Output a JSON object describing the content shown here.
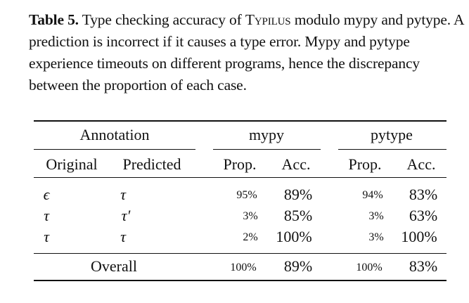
{
  "caption": {
    "label": "Table 5.",
    "text_before": " Type checking accuracy of ",
    "system_name": "Typilus",
    "text_after": " modulo mypy and pytype. A prediction is incorrect if it causes a type error. Mypy and pytype experience timeouts on different programs, hence the discrepancy between the proportion of each case."
  },
  "table": {
    "group_headers": {
      "annotation": "Annotation",
      "mypy": "mypy",
      "pytype": "pytype"
    },
    "sub_headers": {
      "original": "Original",
      "predicted": "Predicted",
      "mypy_prop": "Prop.",
      "mypy_acc": "Acc.",
      "pytype_prop": "Prop.",
      "pytype_acc": "Acc."
    },
    "rows": [
      {
        "original": "ϵ",
        "predicted": "τ",
        "mypy_prop": "95%",
        "mypy_acc": "89%",
        "pytype_prop": "94%",
        "pytype_acc": "83%"
      },
      {
        "original": "τ",
        "predicted": "τ′",
        "mypy_prop": "3%",
        "mypy_acc": "85%",
        "pytype_prop": "3%",
        "pytype_acc": "63%"
      },
      {
        "original": "τ",
        "predicted": "τ",
        "mypy_prop": "2%",
        "mypy_acc": "100%",
        "pytype_prop": "3%",
        "pytype_acc": "100%"
      }
    ],
    "overall": {
      "label": "Overall",
      "mypy_prop": "100%",
      "mypy_acc": "89%",
      "pytype_prop": "100%",
      "pytype_acc": "83%"
    }
  }
}
